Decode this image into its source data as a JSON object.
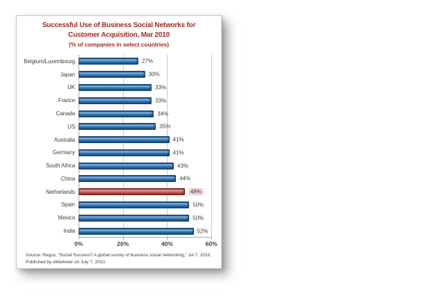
{
  "chart_data": {
    "type": "bar",
    "orientation": "horizontal",
    "title_line1": "Successful Use of Business Social Networks for",
    "title_line2": "Customer Acquisition, Mar 2010",
    "subtitle": "(% of companies in select countries)",
    "categories": [
      "Belgium/Luxembourg",
      "Japan",
      "UK",
      "France",
      "Canada",
      "US",
      "Australia",
      "Germany",
      "South Africa",
      "China",
      "Netherlands",
      "Spain",
      "Mexico",
      "India"
    ],
    "values": [
      27,
      30,
      33,
      33,
      34,
      35,
      41,
      41,
      43,
      44,
      48,
      50,
      50,
      52
    ],
    "value_labels": [
      "27%",
      "30%",
      "33%",
      "33%",
      "34%",
      "35%",
      "41%",
      "41%",
      "43%",
      "44%",
      "48%",
      "50%",
      "50%",
      "52%"
    ],
    "highlight_index": 10,
    "highlight_category": "Netherlands",
    "xlim": [
      0,
      60
    ],
    "x_ticks": [
      {
        "label": "0%",
        "value": 0
      },
      {
        "label": "20%",
        "value": 20
      },
      {
        "label": "40%",
        "value": 40
      },
      {
        "label": "60%",
        "value": 60
      }
    ],
    "grid": "vertical",
    "legend": "none",
    "source_line1": "Source: Regus, “Social Success? A global survey of business social networking,” Jul 7, 2010.",
    "source_line2": "Published by eMarketer on July 7, 2010.",
    "colors": {
      "title_red": "#a42a20",
      "bar_blue": "#2f6fac",
      "bar_red": "#c0504d",
      "highlight_label_bg": "#f2dcdb",
      "label_gray": "#3f3f3f",
      "gridline": "#c9c9c9",
      "axis_line": "#a9a9a9",
      "panel_bg": "#ffffff"
    }
  }
}
